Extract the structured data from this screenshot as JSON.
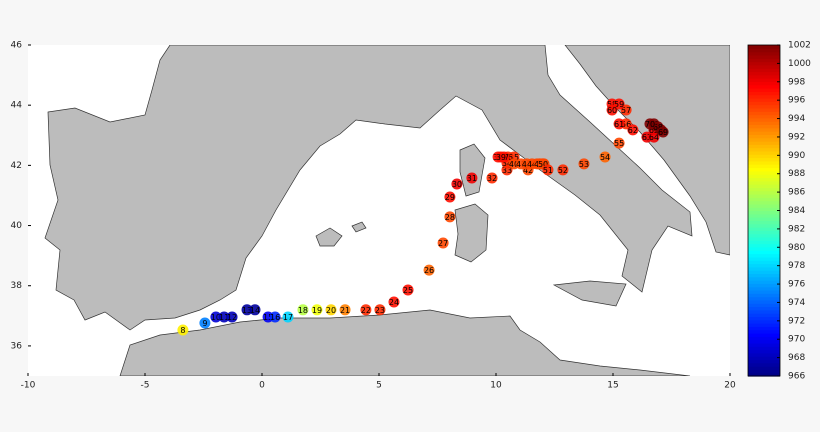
{
  "chart_data": {
    "type": "scatter",
    "colormap": "jet",
    "xlim": [
      -10,
      20
    ],
    "ylim": [
      35,
      46
    ],
    "xticks": [
      -10,
      -5,
      0,
      5,
      10,
      15,
      20
    ],
    "yticks": [
      36,
      38,
      40,
      42,
      44,
      46
    ],
    "clim": [
      966,
      1002
    ],
    "cticks": [
      966,
      968,
      970,
      972,
      974,
      976,
      978,
      980,
      982,
      984,
      986,
      988,
      990,
      992,
      994,
      996,
      998,
      1000,
      1002
    ],
    "point_labels": [
      "8",
      "9",
      "10",
      "11",
      "12",
      "13",
      "14",
      "15",
      "16",
      "17",
      "18",
      "19",
      "20",
      "21",
      "22",
      "23",
      "24",
      "25",
      "26",
      "27",
      "28",
      "29",
      "30",
      "31",
      "32",
      "33",
      "34",
      "35",
      "36",
      "37",
      "38",
      "39",
      "40",
      "41",
      "42",
      "43",
      "44",
      "45",
      "46",
      "47",
      "48",
      "49",
      "50",
      "51",
      "52",
      "53",
      "54",
      "55",
      "56",
      "57",
      "58",
      "59",
      "60",
      "61",
      "62",
      "63",
      "64",
      "65",
      "66",
      "67",
      "68",
      "69",
      "70"
    ],
    "x": [
      -3.38,
      -2.44,
      -1.97,
      -1.62,
      -1.28,
      -0.64,
      -0.3,
      0.26,
      0.56,
      1.11,
      1.75,
      2.35,
      2.95,
      3.55,
      4.44,
      5.04,
      5.64,
      6.24,
      7.14,
      7.74,
      8.03,
      8.03,
      8.33,
      8.97,
      9.83,
      10.47,
      10.47,
      10.77,
      10.51,
      10.34,
      10.09,
      10.21,
      10.77,
      11.07,
      11.37,
      11.32,
      11.54,
      11.75,
      11.88,
      11.97,
      12.05,
      11.84,
      12.01,
      12.22,
      12.86,
      13.76,
      14.66,
      15.26,
      15.56,
      15.56,
      14.96,
      15.26,
      14.96,
      15.26,
      15.85,
      16.45,
      16.75,
      16.75,
      16.75,
      17.05,
      16.92,
      17.14,
      16.58
    ],
    "y": [
      36.53,
      36.76,
      36.96,
      36.96,
      36.96,
      37.2,
      37.2,
      36.96,
      36.96,
      36.96,
      37.2,
      37.2,
      37.2,
      37.2,
      37.2,
      37.2,
      37.46,
      37.86,
      38.52,
      39.42,
      40.29,
      40.95,
      41.38,
      41.58,
      41.58,
      41.85,
      42.08,
      42.28,
      42.28,
      42.28,
      42.28,
      42.28,
      42.05,
      42.05,
      41.85,
      42.05,
      42.05,
      42.05,
      42.05,
      42.05,
      42.05,
      42.05,
      42.05,
      41.85,
      41.85,
      42.05,
      42.28,
      42.74,
      43.38,
      43.84,
      44.04,
      44.04,
      43.84,
      43.38,
      43.18,
      42.94,
      42.94,
      43.18,
      43.38,
      43.18,
      43.28,
      43.11,
      43.38
    ],
    "values": [
      989,
      975,
      969,
      968,
      968,
      967,
      967,
      970,
      972,
      978,
      986,
      988,
      990,
      993,
      996,
      996,
      997,
      997,
      994,
      995,
      995,
      997,
      998,
      998,
      996,
      996,
      996,
      996,
      996,
      997,
      997,
      997,
      995,
      995,
      995,
      995,
      995,
      995,
      995,
      995,
      995,
      995,
      995,
      996,
      996,
      995,
      994,
      995,
      996,
      996,
      997,
      997,
      997,
      997,
      997,
      998,
      998,
      998,
      1002,
      1002,
      1002,
      1002,
      1002
    ]
  }
}
